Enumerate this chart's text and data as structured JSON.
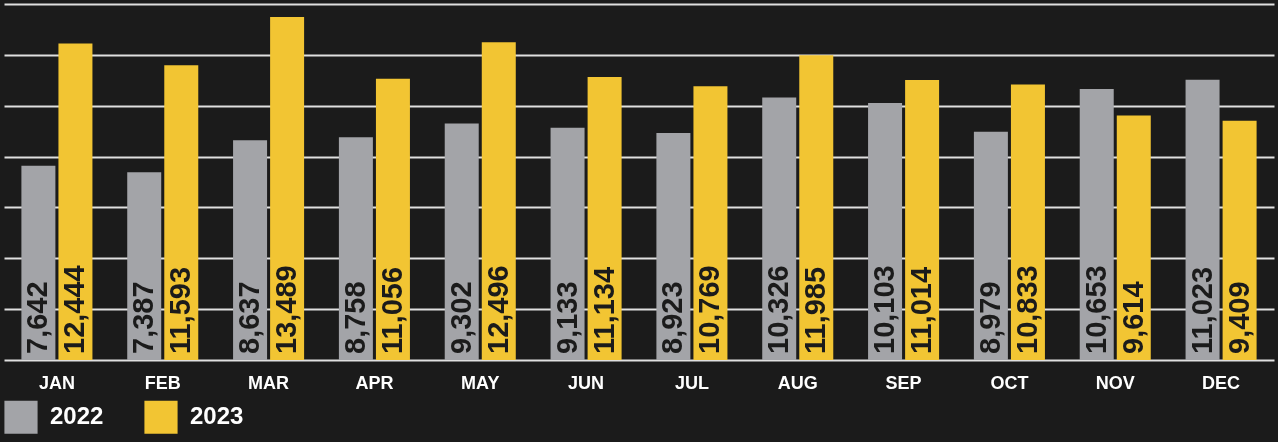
{
  "chart_data": {
    "type": "bar",
    "categories": [
      "JAN",
      "FEB",
      "MAR",
      "APR",
      "MAY",
      "JUN",
      "JUL",
      "AUG",
      "SEP",
      "OCT",
      "NOV",
      "DEC"
    ],
    "series": [
      {
        "name": "2022",
        "color": "#a3a4a8",
        "values": [
          7642,
          7387,
          8637,
          8758,
          9302,
          9133,
          8923,
          10326,
          10103,
          8979,
          10653,
          11023
        ],
        "value_labels": [
          "7,642",
          "7,387",
          "8,637",
          "8,758",
          "9,302",
          "9,133",
          "8,923",
          "10,326",
          "10,103",
          "8,979",
          "10,653",
          "11,023"
        ]
      },
      {
        "name": "2023",
        "color": "#f2c533",
        "values": [
          12444,
          11593,
          13489,
          11056,
          12496,
          11134,
          10769,
          11985,
          11014,
          10833,
          9614,
          9409
        ],
        "value_labels": [
          "12,444",
          "11,593",
          "13,489",
          "11,056",
          "12,496",
          "11,134",
          "10,769",
          "11,985",
          "11,014",
          "10,833",
          "9,614",
          "9,409"
        ]
      }
    ],
    "grid": "y",
    "tick_labels": "x",
    "legend": "bottom"
  }
}
